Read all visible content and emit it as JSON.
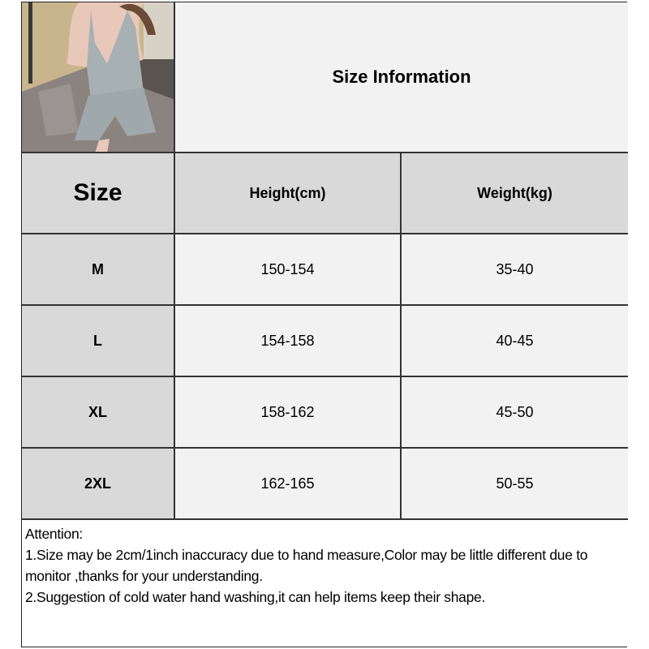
{
  "title": "Size Information",
  "headers": [
    "Size",
    "Height(cm)",
    "Weight(kg)"
  ],
  "rows": [
    {
      "size": "M",
      "height": "150-154",
      "weight": "35-40"
    },
    {
      "size": "L",
      "height": "154-158",
      "weight": "40-45"
    },
    {
      "size": "XL",
      "height": "158-162",
      "weight": "45-50"
    },
    {
      "size": "2XL",
      "height": "162-165",
      "weight": "50-55"
    }
  ],
  "notes": {
    "heading": "Attention:",
    "items": [
      "1.Size may be 2cm/1inch inaccuracy due to hand measure,Color may be little different due to monitor ,thanks for your understanding.",
      "2.Suggestion of cold water hand washing,it can help items keep their shape."
    ]
  },
  "colors": {
    "header_bg": "#d9d9d9",
    "cell_bg": "#f2f2f2",
    "border": "#333333"
  }
}
